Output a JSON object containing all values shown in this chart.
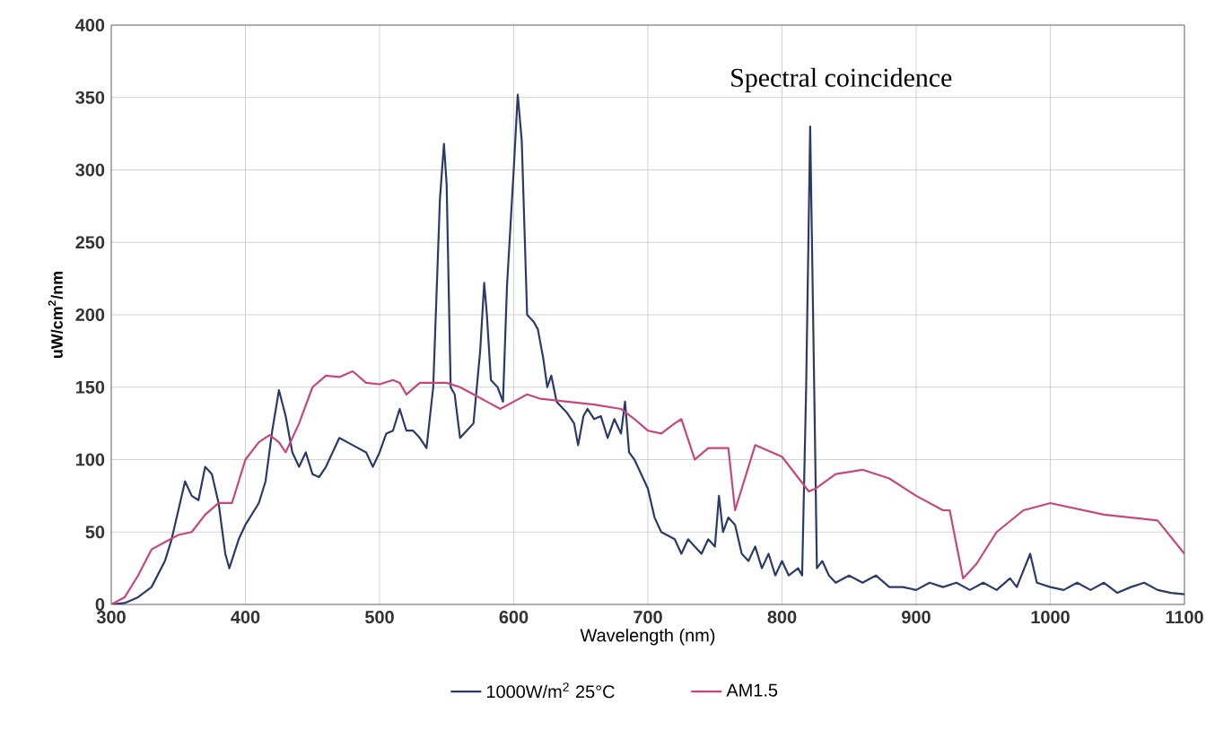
{
  "chart_data": {
    "type": "line",
    "title": "Spectral coincidence",
    "xlabel": "Wavelength (nm)",
    "ylabel": "uW/cm$^{2}$/nm",
    "xlim": [
      300,
      1100
    ],
    "ylim": [
      0,
      400
    ],
    "xticks": [
      300,
      400,
      500,
      600,
      700,
      800,
      900,
      1000,
      1100
    ],
    "yticks": [
      0,
      50,
      100,
      150,
      200,
      250,
      300,
      350,
      400
    ],
    "grid": true,
    "legend": "bottom",
    "series": [
      {
        "name": "1000W/m$^{2}$  25°C",
        "color": "#2b3a6b",
        "x": [
          300,
          310,
          320,
          330,
          340,
          345,
          350,
          355,
          360,
          365,
          370,
          375,
          380,
          385,
          388,
          395,
          400,
          410,
          415,
          420,
          425,
          430,
          435,
          440,
          445,
          450,
          455,
          460,
          470,
          480,
          490,
          495,
          500,
          505,
          510,
          515,
          520,
          525,
          530,
          535,
          540,
          545,
          548,
          550,
          553,
          556,
          560,
          565,
          570,
          575,
          578,
          580,
          583,
          588,
          592,
          595,
          600,
          603,
          606,
          610,
          615,
          618,
          622,
          625,
          628,
          632,
          640,
          645,
          648,
          652,
          655,
          660,
          665,
          670,
          675,
          680,
          683,
          686,
          690,
          700,
          705,
          710,
          720,
          725,
          730,
          735,
          740,
          745,
          750,
          753,
          756,
          760,
          765,
          770,
          775,
          780,
          785,
          790,
          795,
          800,
          805,
          812,
          815,
          818,
          821,
          824,
          826,
          830,
          835,
          840,
          850,
          860,
          870,
          880,
          890,
          900,
          910,
          920,
          930,
          940,
          950,
          960,
          970,
          975,
          985,
          990,
          1000,
          1010,
          1020,
          1030,
          1040,
          1050,
          1060,
          1070,
          1080,
          1090,
          1100
        ],
        "values": [
          0,
          1,
          5,
          12,
          30,
          45,
          65,
          85,
          75,
          72,
          95,
          90,
          70,
          35,
          25,
          45,
          55,
          70,
          85,
          120,
          148,
          130,
          105,
          95,
          105,
          90,
          88,
          95,
          115,
          110,
          105,
          95,
          105,
          118,
          120,
          135,
          120,
          120,
          115,
          108,
          150,
          280,
          318,
          290,
          150,
          145,
          115,
          120,
          125,
          175,
          222,
          200,
          155,
          150,
          140,
          220,
          300,
          352,
          320,
          200,
          195,
          190,
          170,
          150,
          158,
          140,
          132,
          125,
          110,
          130,
          135,
          128,
          130,
          115,
          128,
          118,
          140,
          105,
          100,
          80,
          60,
          50,
          45,
          35,
          45,
          40,
          35,
          45,
          40,
          75,
          50,
          60,
          55,
          35,
          30,
          40,
          25,
          35,
          20,
          30,
          20,
          25,
          20,
          150,
          330,
          150,
          25,
          30,
          20,
          15,
          20,
          15,
          20,
          12,
          12,
          10,
          15,
          12,
          15,
          10,
          15,
          10,
          18,
          12,
          35,
          15,
          12,
          10,
          15,
          10,
          15,
          8,
          12,
          15,
          10,
          8,
          7
        ]
      },
      {
        "name": "AM1.5",
        "color": "#c8467a",
        "x": [
          300,
          310,
          320,
          330,
          340,
          350,
          360,
          370,
          380,
          390,
          400,
          410,
          418,
          425,
          430,
          440,
          450,
          460,
          470,
          480,
          490,
          500,
          510,
          515,
          520,
          530,
          540,
          550,
          560,
          570,
          580,
          590,
          600,
          610,
          620,
          640,
          660,
          680,
          690,
          700,
          710,
          720,
          725,
          735,
          745,
          760,
          765,
          780,
          800,
          820,
          825,
          840,
          860,
          880,
          900,
          920,
          925,
          935,
          945,
          960,
          980,
          1000,
          1040,
          1080,
          1100
        ],
        "values": [
          0,
          5,
          20,
          38,
          43,
          48,
          50,
          62,
          70,
          70,
          100,
          112,
          117,
          112,
          105,
          125,
          150,
          158,
          157,
          161,
          153,
          152,
          155,
          153,
          145,
          153,
          153,
          153,
          150,
          145,
          140,
          135,
          140,
          145,
          142,
          140,
          138,
          135,
          128,
          120,
          118,
          125,
          128,
          100,
          108,
          108,
          65,
          110,
          102,
          78,
          80,
          90,
          93,
          87,
          75,
          65,
          65,
          18,
          28,
          50,
          65,
          70,
          62,
          58,
          35
        ]
      }
    ]
  }
}
